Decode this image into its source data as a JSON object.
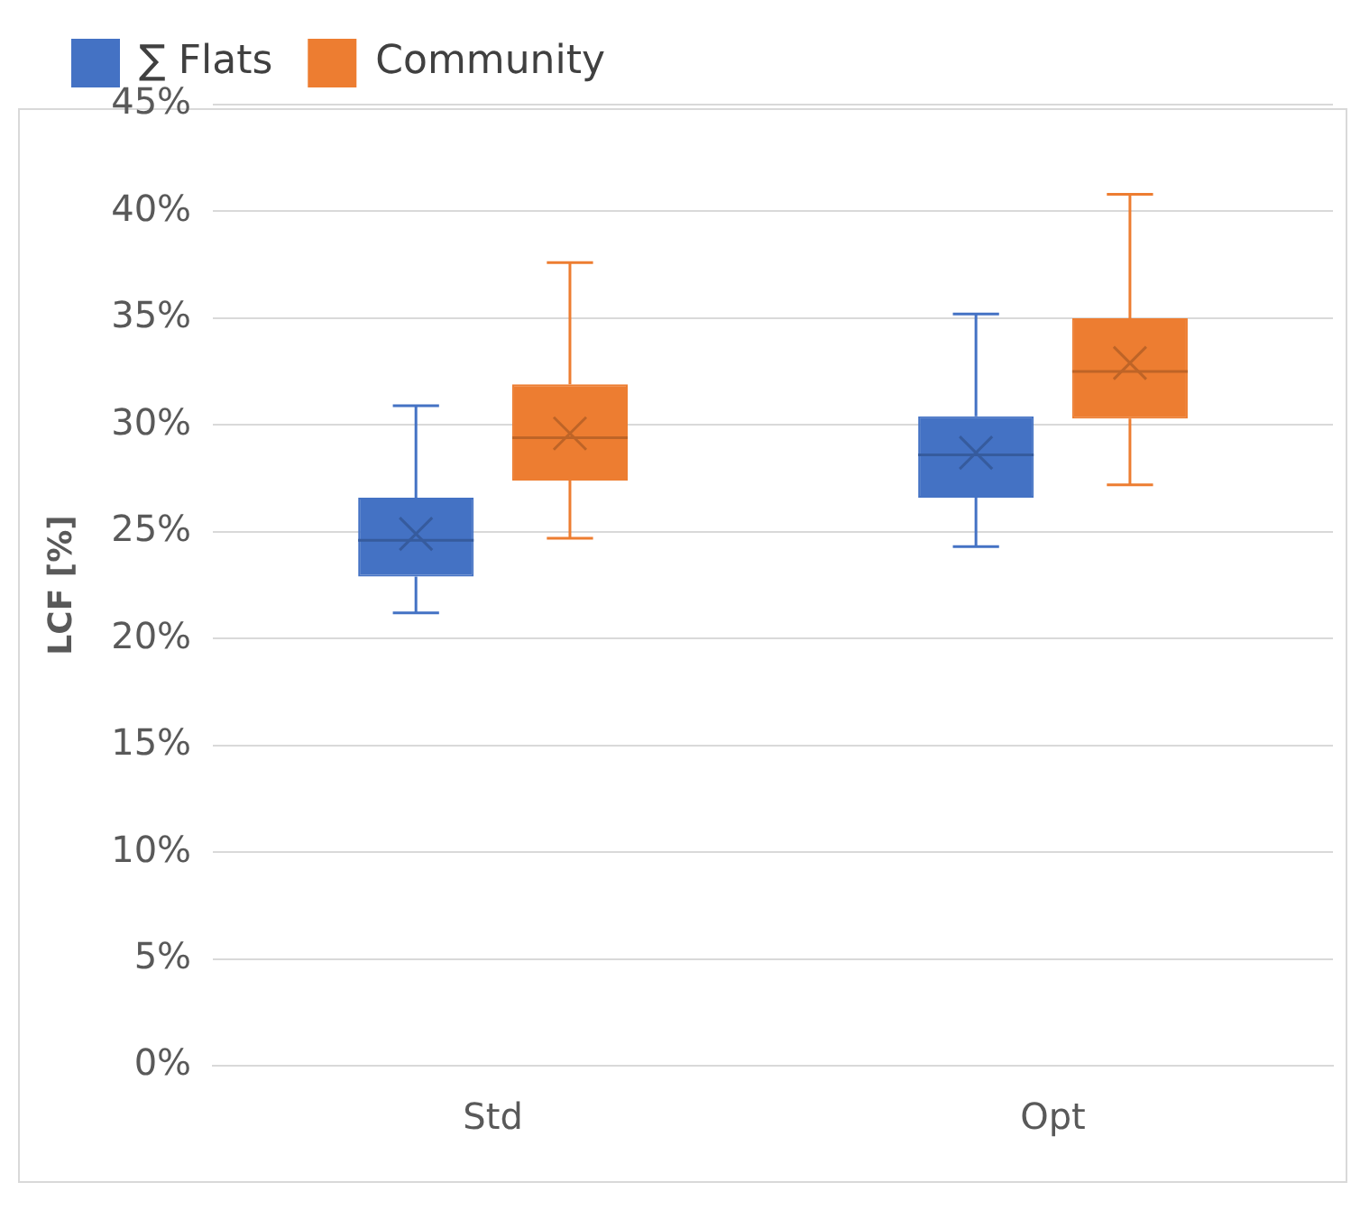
{
  "chart_data": {
    "type": "box",
    "ylabel": "LCF [%]",
    "categories": [
      "Std",
      "Opt"
    ],
    "series": [
      {
        "name": "∑ Flats",
        "color": "#4472c4",
        "boxes": [
          {
            "low": 21.2,
            "q1": 22.9,
            "median": 24.6,
            "q3": 26.6,
            "high": 30.9,
            "mean": 24.9
          },
          {
            "low": 24.3,
            "q1": 26.6,
            "median": 28.6,
            "q3": 30.4,
            "high": 35.2,
            "mean": 28.7
          }
        ]
      },
      {
        "name": "Community",
        "color": "#ed7d31",
        "boxes": [
          {
            "low": 24.7,
            "q1": 27.4,
            "median": 29.4,
            "q3": 31.9,
            "high": 37.6,
            "mean": 29.6
          },
          {
            "low": 27.2,
            "q1": 30.3,
            "median": 32.5,
            "q3": 35.0,
            "high": 40.8,
            "mean": 32.9
          }
        ]
      }
    ],
    "ylim": [
      0,
      45
    ],
    "yticks": [
      {
        "value": 0,
        "label": "0%"
      },
      {
        "value": 5,
        "label": "5%"
      },
      {
        "value": 10,
        "label": "10%"
      },
      {
        "value": 15,
        "label": "15%"
      },
      {
        "value": 20,
        "label": "20%"
      },
      {
        "value": 25,
        "label": "25%"
      },
      {
        "value": 30,
        "label": "30%"
      },
      {
        "value": 35,
        "label": "35%"
      },
      {
        "value": 40,
        "label": "40%"
      },
      {
        "value": 45,
        "label": "45%"
      }
    ],
    "grid": "y",
    "legend": "top left"
  }
}
